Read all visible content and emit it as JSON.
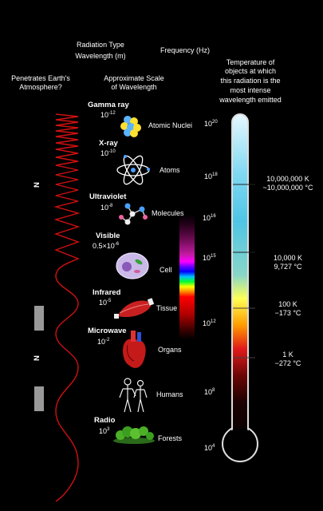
{
  "headers": {
    "radiation_type": "Radiation Type",
    "wavelength": "Wavelength (m)",
    "frequency": "Frequency (Hz)",
    "penetrates_line1": "Penetrates Earth's",
    "penetrates_line2": "Atmosphere?",
    "scale_line1": "Approximate Scale",
    "scale_line2": "of Wavelength",
    "temp_line1": "Temperature of",
    "temp_line2": "objects at which",
    "temp_line3": "this radiation is the",
    "temp_line4": "most intense",
    "temp_line5": "wavelength emitted"
  },
  "atmosphere": {
    "n1": "N",
    "n2": "N"
  },
  "bands": [
    {
      "name": "Gamma ray",
      "wl_base": "10",
      "wl_exp": "-12",
      "scale": "Atomic Nuclei"
    },
    {
      "name": "X-ray",
      "wl_base": "10",
      "wl_exp": "-10",
      "scale": "Atoms"
    },
    {
      "name": "Ultraviolet",
      "wl_base": "10",
      "wl_exp": "-8",
      "scale": "Molecules"
    },
    {
      "name": "Visible",
      "wl_base": "0.5×10",
      "wl_exp": "-6",
      "scale": "Cell"
    },
    {
      "name": "Infrared",
      "wl_base": "10",
      "wl_exp": "-5",
      "scale": "Tissue"
    },
    {
      "name": "Microwave",
      "wl_base": "10",
      "wl_exp": "-2",
      "scale": "Organs"
    },
    {
      "name": "",
      "wl_base": "",
      "wl_exp": "",
      "scale": "Humans"
    },
    {
      "name": "Radio",
      "wl_base": "10",
      "wl_exp": "3",
      "scale": "Forests"
    }
  ],
  "frequencies": [
    {
      "base": "10",
      "exp": "20"
    },
    {
      "base": "10",
      "exp": "18"
    },
    {
      "base": "10",
      "exp": "16"
    },
    {
      "base": "10",
      "exp": "15"
    },
    {
      "base": "10",
      "exp": "12"
    },
    {
      "base": "10",
      "exp": "8"
    },
    {
      "base": "10",
      "exp": "4"
    }
  ],
  "temperatures": [
    {
      "k": "10,000,000 K",
      "c": "~10,000,000 °C"
    },
    {
      "k": "10,000 K",
      "c": "9,727 °C"
    },
    {
      "k": "100 K",
      "c": "−173 °C"
    },
    {
      "k": "1 K",
      "c": "−272 °C"
    }
  ],
  "colors": {
    "wave": "#d01010",
    "bg": "#000000",
    "text": "#ffffff"
  },
  "icons": [
    "atomic-nucleus-icon",
    "atom-icon",
    "molecule-icon",
    "cell-icon",
    "muscle-tissue-icon",
    "heart-organ-icon",
    "humans-icon",
    "forest-icon",
    "thermometer-icon"
  ]
}
